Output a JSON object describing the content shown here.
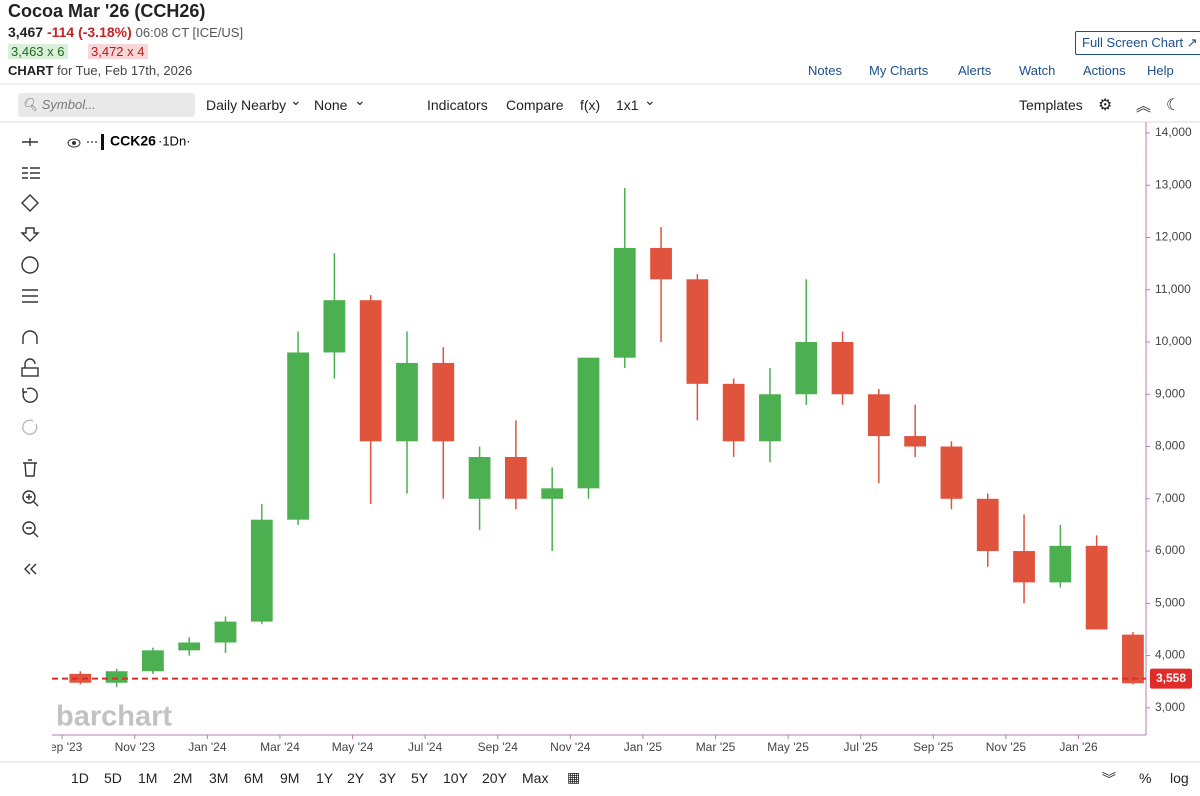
{
  "header": {
    "title": "Cocoa Mar '26 (CCH26)",
    "last": "3,467",
    "change": "-114 (-3.18%)",
    "time": "06:08 CT [ICE/US]",
    "bid": "3,463 x 6",
    "ask": "3,472 x 4",
    "chart_label": "CHART",
    "chart_date": "for Tue, Feb 17th, 2026",
    "full_screen": "Full Screen Chart"
  },
  "links": [
    "Notes",
    "My Charts",
    "Alerts",
    "Watch",
    "Actions",
    "Help"
  ],
  "toolbar": {
    "symbol_placeholder": "Symbol...",
    "items": [
      "Daily Nearby",
      "None",
      "Indicators",
      "Compare",
      "f(x)",
      "1x1"
    ],
    "templates": "Templates"
  },
  "chart_data": {
    "type": "candlestick",
    "legend_detail": "·1Dn·",
    "watermark": "barchart",
    "x": [
      0.5,
      1.5,
      2.5,
      3.5,
      4.5,
      5.5,
      6.5,
      7.5,
      8.5,
      9.5,
      10.5,
      11.5,
      12.5,
      13.5,
      14.5,
      15.5,
      16.5,
      17.5,
      18.5,
      19.5,
      20.5,
      21.5,
      22.5,
      23.5,
      24.5,
      25.5,
      26.5,
      27.5,
      28.5,
      29.5
    ],
    "series": [
      {
        "name": "CCK26",
        "up_color": "#4caf50",
        "down_color": "#e0533c",
        "open": [
          3650,
          3480,
          3700,
          4100,
          4250,
          4650,
          6600,
          9800,
          10800,
          8100,
          9600,
          7000,
          7800,
          7000,
          7200,
          9700,
          11800,
          11200,
          9200,
          8100,
          9000,
          10000,
          9000,
          8200,
          8000,
          7000,
          6000,
          5400,
          6100,
          4400
        ],
        "high": [
          3700,
          3750,
          4150,
          4350,
          4750,
          6900,
          10200,
          11700,
          10900,
          10200,
          9900,
          8000,
          8500,
          7600,
          9700,
          12950,
          12200,
          11300,
          9300,
          9500,
          11200,
          10200,
          9100,
          8800,
          8100,
          7100,
          6700,
          6500,
          6300,
          4450
        ],
        "low": [
          3450,
          3400,
          3650,
          4000,
          4050,
          4600,
          6500,
          9300,
          6900,
          7100,
          7000,
          6400,
          6800,
          6000,
          7000,
          9500,
          10000,
          8500,
          7800,
          7700,
          8800,
          8800,
          7300,
          7800,
          6800,
          5700,
          5000,
          5300,
          4500,
          3450
        ],
        "close": [
          3480,
          3700,
          4100,
          4250,
          4650,
          6600,
          9800,
          10800,
          8100,
          9600,
          8100,
          7800,
          7000,
          7200,
          9700,
          11800,
          11200,
          9200,
          8100,
          9000,
          10000,
          9000,
          8200,
          8000,
          7000,
          6000,
          5400,
          6100,
          4500,
          3470
        ]
      }
    ],
    "price_line": {
      "value": 3558,
      "label": "3,558",
      "color": "#e02b2b"
    },
    "ylim": [
      2480,
      14210
    ],
    "xlim": [
      -0.28,
      29.86
    ],
    "yticks": [
      {
        "value": 3000,
        "label": "3,000"
      },
      {
        "value": 4000,
        "label": "4,000"
      },
      {
        "value": 5000,
        "label": "5,000"
      },
      {
        "value": 6000,
        "label": "6,000"
      },
      {
        "value": 7000,
        "label": "7,000"
      },
      {
        "value": 8000,
        "label": "8,000"
      },
      {
        "value": 9000,
        "label": "9,000"
      },
      {
        "value": 10000,
        "label": "10,000"
      },
      {
        "value": 11000,
        "label": "11,000"
      },
      {
        "value": 12000,
        "label": "12,000"
      },
      {
        "value": 13000,
        "label": "13,000"
      },
      {
        "value": 14000,
        "label": "14,000"
      }
    ],
    "xticks": [
      {
        "value": 0,
        "label": "Sep '23"
      },
      {
        "value": 2,
        "label": "Nov '23"
      },
      {
        "value": 4,
        "label": "Jan '24"
      },
      {
        "value": 6,
        "label": "Mar '24"
      },
      {
        "value": 8,
        "label": "May '24"
      },
      {
        "value": 10,
        "label": "Jul '24"
      },
      {
        "value": 12,
        "label": "Sep '24"
      },
      {
        "value": 14,
        "label": "Nov '24"
      },
      {
        "value": 16,
        "label": "Jan '25"
      },
      {
        "value": 18,
        "label": "Mar '25"
      },
      {
        "value": 20,
        "label": "May '25"
      },
      {
        "value": 22,
        "label": "Jul '25"
      },
      {
        "value": 24,
        "label": "Sep '25"
      },
      {
        "value": 26,
        "label": "Nov '25"
      },
      {
        "value": 28,
        "label": "Jan '26"
      }
    ]
  },
  "timeframes": [
    "1D",
    "5D",
    "1M",
    "2M",
    "3M",
    "6M",
    "9M",
    "1Y",
    "2Y",
    "3Y",
    "5Y",
    "10Y",
    "20Y",
    "Max"
  ],
  "bottom_right": [
    "%",
    "log"
  ]
}
